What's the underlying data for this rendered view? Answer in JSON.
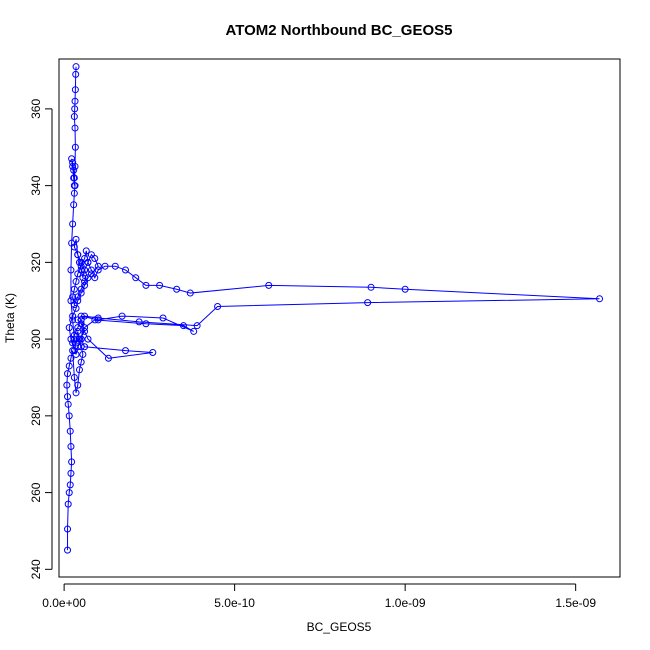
{
  "chart_data": {
    "type": "scatter",
    "title": "ATOM2 Northbound BC_GEOS5",
    "xlabel": "BC_GEOS5",
    "ylabel": "Theta (K)",
    "xlim": [
      -1.5e-11,
      1.63e-09
    ],
    "ylim": [
      238,
      373
    ],
    "xticks": [
      0,
      5e-10,
      1e-09,
      1.5e-09
    ],
    "xtick_labels": [
      "0.0e+00",
      "5.0e-10",
      "1.0e-09",
      "1.5e-09"
    ],
    "yticks": [
      240,
      260,
      280,
      300,
      320,
      340,
      360
    ],
    "ytick_labels": [
      "240",
      "260",
      "280",
      "300",
      "320",
      "340",
      "360"
    ],
    "grid": false,
    "legend": "none",
    "colors": {
      "series": "#0000ff",
      "axes": "#000000"
    },
    "series": [
      {
        "marker": "open-circle",
        "connected": true,
        "x": [
          1e-11,
          1e-11,
          1.2e-11,
          1.5e-11,
          1.8e-11,
          2e-11,
          2.2e-11,
          2e-11,
          1.8e-11,
          1.5e-11,
          1.2e-11,
          1e-11,
          8e-12,
          1e-11,
          1.5e-11,
          2e-11,
          2.5e-11,
          3e-11,
          3.5e-11,
          4e-11,
          4.5e-11,
          5e-11,
          5.5e-11,
          5e-11,
          4.5e-11,
          4e-11,
          3.5e-11,
          4.5e-11,
          6e-11,
          5e-11,
          4e-11,
          3e-11,
          2.5e-11,
          3e-11,
          2e-11,
          1.5e-11,
          2.5e-11,
          3.5e-11,
          4e-11,
          5e-11,
          6e-11,
          7e-11,
          6e-11,
          5e-11,
          4e-11,
          3e-11,
          3.5e-11,
          4e-11,
          4.5e-11,
          5e-11,
          5.5e-11,
          6e-11,
          7e-11,
          8e-11,
          9e-11,
          1e-10,
          8e-11,
          6e-11,
          5e-11,
          4e-11,
          3e-11,
          2.5e-11,
          3e-11,
          3.5e-11,
          4e-11,
          5e-11,
          6e-11,
          6.5e-11,
          7e-11,
          8e-11,
          9e-11,
          1e-10,
          1.2e-10,
          1.5e-10,
          1.8e-10,
          2.1e-10,
          2.4e-10,
          2.8e-10,
          3.3e-10,
          3.7e-10,
          6e-10,
          9e-10,
          1e-09,
          1.57e-09,
          8.9e-10,
          4.5e-10,
          3.9e-10,
          2.2e-10,
          1e-10,
          6e-11,
          5e-11,
          6e-11,
          1.8e-10,
          2.6e-10,
          1.3e-10,
          7e-11,
          5e-11,
          4e-11,
          5e-11,
          1e-10,
          1.7e-10,
          2.9e-10,
          3.8e-10,
          3.5e-10,
          2.4e-10,
          9e-11,
          6e-11,
          5e-11,
          4e-11,
          3.5e-11,
          3e-11,
          2.5e-11,
          2e-11,
          2e-11,
          2.2e-11,
          2.5e-11,
          2.8e-11,
          3e-11,
          3.2e-11,
          3e-11,
          2.8e-11,
          2.5e-11,
          2.2e-11,
          2.5e-11,
          2.8e-11,
          3e-11,
          3.2e-11,
          3.3e-11,
          3.2e-11,
          3e-11,
          3.1e-11,
          3.2e-11,
          3.3e-11,
          3.4e-11,
          3.5e-11
        ],
        "y": [
          245,
          250.5,
          257,
          260,
          262,
          265,
          268,
          272,
          276,
          280,
          283,
          285,
          288,
          291,
          293,
          295,
          297,
          290,
          286,
          288,
          292,
          294,
          296,
          298,
          300,
          302,
          299,
          300,
          302,
          305,
          303,
          301,
          299,
          297,
          300,
          303,
          306,
          308,
          310,
          312,
          314,
          316,
          318,
          320,
          322,
          324,
          326,
          322,
          320,
          318,
          316,
          318,
          320,
          322,
          321,
          319,
          317,
          315,
          313,
          311,
          309,
          311,
          313,
          315,
          317,
          319,
          321,
          323,
          320,
          318,
          316,
          318,
          319,
          319,
          318,
          316,
          314,
          314,
          313,
          312,
          314,
          313.5,
          313,
          310.5,
          309.5,
          308.5,
          303.5,
          304.5,
          305.5,
          306,
          300,
          298,
          297,
          296.5,
          295,
          300,
          304,
          305,
          306,
          305,
          306,
          305.5,
          302,
          303.5,
          304,
          305,
          303,
          300,
          298,
          296,
          300,
          305,
          310,
          318,
          325,
          330,
          335,
          338,
          340,
          342,
          344,
          346,
          347,
          345,
          342,
          340,
          345,
          350,
          355,
          358,
          360,
          362,
          365,
          369,
          371
        ]
      }
    ]
  }
}
